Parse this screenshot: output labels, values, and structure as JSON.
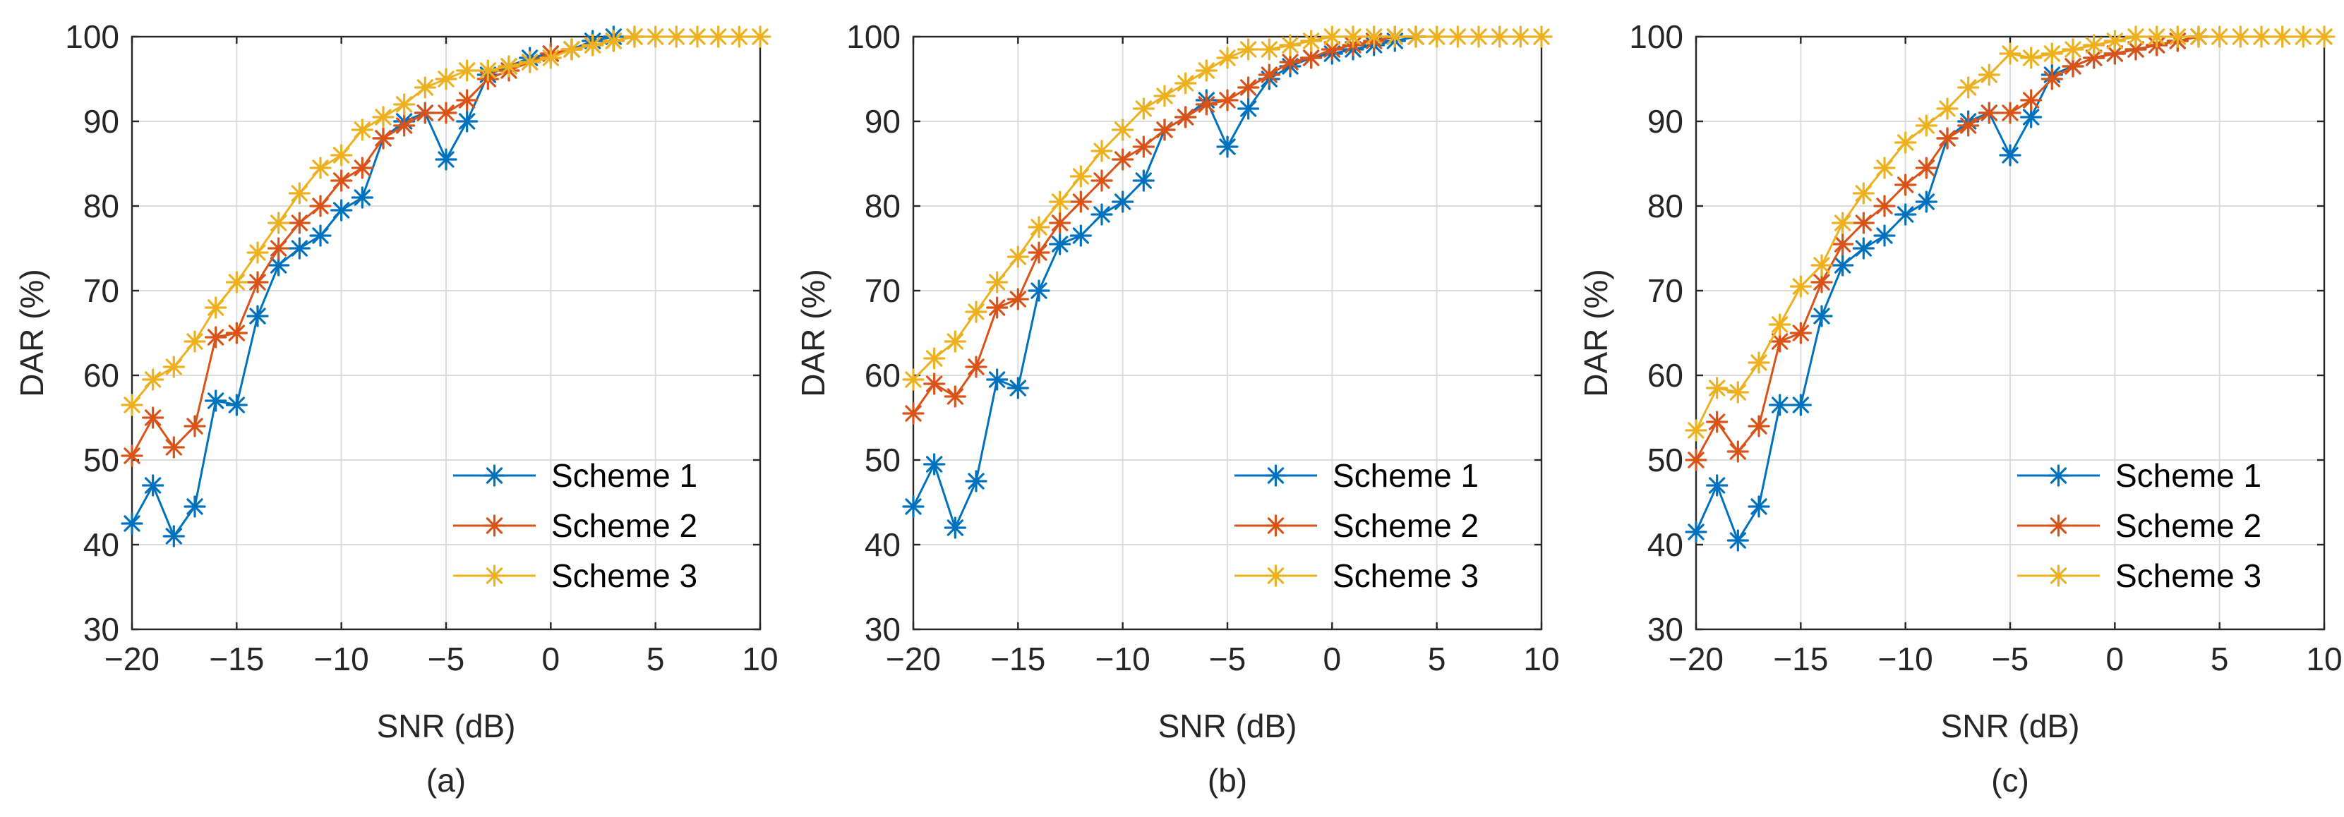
{
  "colors": {
    "grid": "#dcdcdc",
    "axis": "#262626"
  },
  "chart_data": [
    {
      "type": "line",
      "caption": "(a)",
      "xlabel": "SNR (dB)",
      "ylabel": "DAR (%)",
      "xlim": [
        -20,
        10
      ],
      "ylim": [
        30,
        100
      ],
      "xticks": [
        -20,
        -15,
        -10,
        -5,
        0,
        5,
        10
      ],
      "xtick_labels": [
        "−20",
        "−15",
        "−10",
        "−5",
        "0",
        "5",
        "10"
      ],
      "yticks": [
        30,
        40,
        50,
        60,
        70,
        80,
        90,
        100
      ],
      "ytick_labels": [
        "30",
        "40",
        "50",
        "60",
        "70",
        "80",
        "90",
        "100"
      ],
      "grid": true,
      "legend_position": "bottom-right",
      "series": [
        {
          "name": "Scheme 1",
          "color": "#0072BD",
          "marker": "asterisk",
          "x": [
            -20,
            -19,
            -18,
            -17,
            -16,
            -15,
            -14,
            -13,
            -12,
            -11,
            -10,
            -9,
            -8,
            -7,
            -6,
            -5,
            -4,
            -3,
            -2,
            -1,
            0,
            1,
            2,
            3
          ],
          "y": [
            42.5,
            47,
            41,
            44.5,
            57,
            56.5,
            67,
            73,
            75,
            76.5,
            79.5,
            81,
            88,
            90,
            91,
            85.5,
            90,
            95.5,
            96.5,
            97.5,
            98,
            98.5,
            99.5,
            100
          ]
        },
        {
          "name": "Scheme 2",
          "color": "#D95319",
          "marker": "asterisk",
          "x": [
            -20,
            -19,
            -18,
            -17,
            -16,
            -15,
            -14,
            -13,
            -12,
            -11,
            -10,
            -9,
            -8,
            -7,
            -6,
            -5,
            -4,
            -3,
            -2,
            -1,
            0,
            1,
            2,
            3,
            4
          ],
          "y": [
            50.5,
            55,
            51.5,
            54,
            64.5,
            65,
            71,
            75,
            78,
            80,
            83,
            84.5,
            88,
            89.5,
            91,
            91,
            92.5,
            95,
            96,
            97,
            98,
            98.5,
            99,
            99.5,
            100
          ]
        },
        {
          "name": "Scheme 3",
          "color": "#EDB120",
          "marker": "asterisk",
          "x": [
            -20,
            -19,
            -18,
            -17,
            -16,
            -15,
            -14,
            -13,
            -12,
            -11,
            -10,
            -9,
            -8,
            -7,
            -6,
            -5,
            -4,
            -3,
            -2,
            -1,
            0,
            1,
            2,
            3,
            4,
            5,
            6,
            7,
            8,
            9,
            10
          ],
          "y": [
            56.5,
            59.5,
            61,
            64,
            68,
            71,
            74.5,
            78,
            81.5,
            84.5,
            86,
            89,
            90.5,
            92,
            94,
            95,
            96,
            96,
            96.5,
            97,
            97.5,
            98.5,
            99,
            99.5,
            100,
            100,
            100,
            100,
            100,
            100,
            100
          ]
        }
      ]
    },
    {
      "type": "line",
      "caption": "(b)",
      "xlabel": "SNR (dB)",
      "ylabel": "DAR (%)",
      "xlim": [
        -20,
        10
      ],
      "ylim": [
        30,
        100
      ],
      "xticks": [
        -20,
        -15,
        -10,
        -5,
        0,
        5,
        10
      ],
      "xtick_labels": [
        "−20",
        "−15",
        "−10",
        "−5",
        "0",
        "5",
        "10"
      ],
      "yticks": [
        30,
        40,
        50,
        60,
        70,
        80,
        90,
        100
      ],
      "ytick_labels": [
        "30",
        "40",
        "50",
        "60",
        "70",
        "80",
        "90",
        "100"
      ],
      "grid": true,
      "legend_position": "bottom-right",
      "series": [
        {
          "name": "Scheme 1",
          "color": "#0072BD",
          "marker": "asterisk",
          "x": [
            -20,
            -19,
            -18,
            -17,
            -16,
            -15,
            -14,
            -13,
            -12,
            -11,
            -10,
            -9,
            -8,
            -7,
            -6,
            -5,
            -4,
            -3,
            -2,
            -1,
            0,
            1,
            2,
            3,
            4
          ],
          "y": [
            44.5,
            49.5,
            42,
            47.5,
            59.5,
            58.5,
            70,
            75.5,
            76.5,
            79,
            80.5,
            83,
            89,
            90.5,
            92.5,
            87,
            91.5,
            95,
            96.5,
            97.5,
            98,
            98.5,
            99,
            99.5,
            100
          ]
        },
        {
          "name": "Scheme 2",
          "color": "#D95319",
          "marker": "asterisk",
          "x": [
            -20,
            -19,
            -18,
            -17,
            -16,
            -15,
            -14,
            -13,
            -12,
            -11,
            -10,
            -9,
            -8,
            -7,
            -6,
            -5,
            -4,
            -3,
            -2,
            -1,
            0,
            1,
            2,
            3,
            4
          ],
          "y": [
            55.5,
            59,
            57.5,
            61,
            68,
            69,
            74.5,
            78,
            80.5,
            83,
            85.5,
            87,
            89,
            90.5,
            92,
            92.5,
            94,
            95.5,
            97,
            97.5,
            98.5,
            99,
            99.5,
            100,
            100
          ]
        },
        {
          "name": "Scheme 3",
          "color": "#EDB120",
          "marker": "asterisk",
          "x": [
            -20,
            -19,
            -18,
            -17,
            -16,
            -15,
            -14,
            -13,
            -12,
            -11,
            -10,
            -9,
            -8,
            -7,
            -6,
            -5,
            -4,
            -3,
            -2,
            -1,
            0,
            1,
            2,
            3,
            4,
            5,
            6,
            7,
            8,
            9,
            10
          ],
          "y": [
            59.5,
            62,
            64,
            67.5,
            71,
            74,
            77.5,
            80.5,
            83.5,
            86.5,
            89,
            91.5,
            93,
            94.5,
            96,
            97.5,
            98.5,
            98.5,
            99,
            99.5,
            100,
            100,
            100,
            100,
            100,
            100,
            100,
            100,
            100,
            100,
            100
          ]
        }
      ]
    },
    {
      "type": "line",
      "caption": "(c)",
      "xlabel": "SNR (dB)",
      "ylabel": "DAR (%)",
      "xlim": [
        -20,
        10
      ],
      "ylim": [
        30,
        100
      ],
      "xticks": [
        -20,
        -15,
        -10,
        -5,
        0,
        5,
        10
      ],
      "xtick_labels": [
        "−20",
        "−15",
        "−10",
        "−5",
        "0",
        "5",
        "10"
      ],
      "yticks": [
        30,
        40,
        50,
        60,
        70,
        80,
        90,
        100
      ],
      "ytick_labels": [
        "30",
        "40",
        "50",
        "60",
        "70",
        "80",
        "90",
        "100"
      ],
      "grid": true,
      "legend_position": "bottom-right",
      "series": [
        {
          "name": "Scheme 1",
          "color": "#0072BD",
          "marker": "asterisk",
          "x": [
            -20,
            -19,
            -18,
            -17,
            -16,
            -15,
            -14,
            -13,
            -12,
            -11,
            -10,
            -9,
            -8,
            -7,
            -6,
            -5,
            -4,
            -3,
            -2,
            -1,
            0,
            1,
            2,
            3,
            4
          ],
          "y": [
            41.5,
            47,
            40.5,
            44.5,
            56.5,
            56.5,
            67,
            73,
            75,
            76.5,
            79,
            80.5,
            88,
            90,
            91,
            86,
            90.5,
            95.5,
            96.5,
            97.5,
            98,
            98.5,
            99,
            99.5,
            100
          ]
        },
        {
          "name": "Scheme 2",
          "color": "#D95319",
          "marker": "asterisk",
          "x": [
            -20,
            -19,
            -18,
            -17,
            -16,
            -15,
            -14,
            -13,
            -12,
            -11,
            -10,
            -9,
            -8,
            -7,
            -6,
            -5,
            -4,
            -3,
            -2,
            -1,
            0,
            1,
            2,
            3,
            4
          ],
          "y": [
            50,
            54.5,
            51,
            54,
            64,
            65,
            71,
            75.5,
            78,
            80,
            82.5,
            84.5,
            88,
            89.5,
            91,
            91,
            92.5,
            95,
            96.5,
            97.5,
            98,
            98.5,
            99,
            99.5,
            100
          ]
        },
        {
          "name": "Scheme 3",
          "color": "#EDB120",
          "marker": "asterisk",
          "x": [
            -20,
            -19,
            -18,
            -17,
            -16,
            -15,
            -14,
            -13,
            -12,
            -11,
            -10,
            -9,
            -8,
            -7,
            -6,
            -5,
            -4,
            -3,
            -2,
            -1,
            0,
            1,
            2,
            3,
            4,
            5,
            6,
            7,
            8,
            9,
            10
          ],
          "y": [
            53.5,
            58.5,
            58,
            61.5,
            66,
            70.5,
            73,
            78,
            81.5,
            84.5,
            87.5,
            89.5,
            91.5,
            94,
            95.5,
            98,
            97.5,
            98,
            98.5,
            99,
            99.5,
            100,
            100,
            100,
            100,
            100,
            100,
            100,
            100,
            100,
            100
          ]
        }
      ]
    }
  ]
}
